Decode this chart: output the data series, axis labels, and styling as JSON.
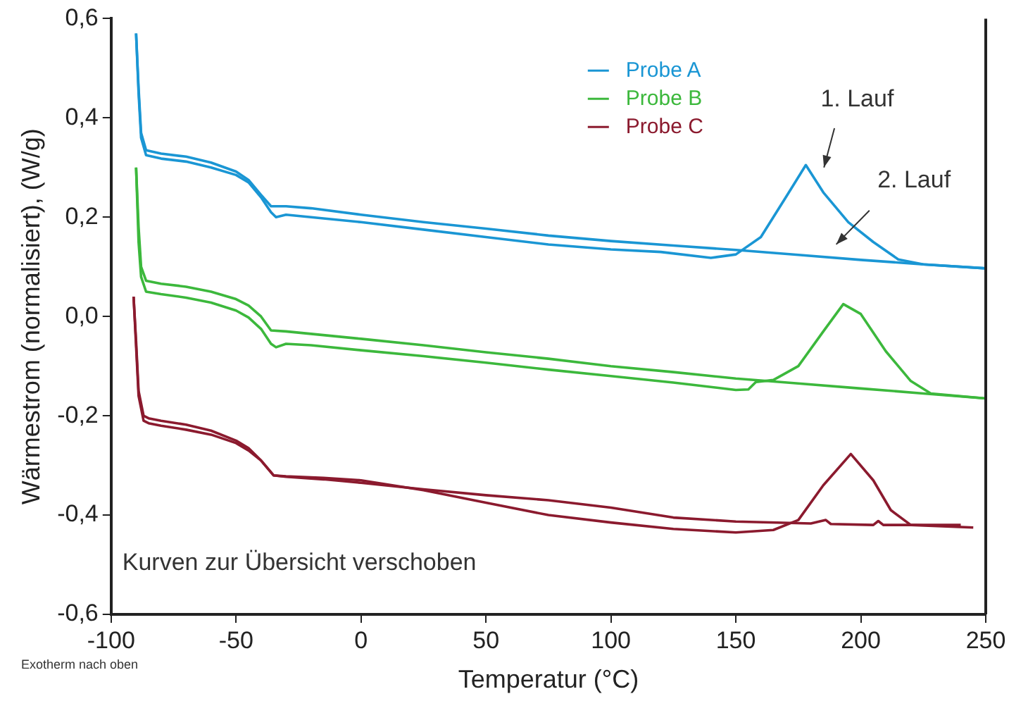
{
  "chart_data": {
    "type": "line",
    "xlabel": "Temperatur (°C)",
    "ylabel": "Wärmestrom (normalisiert), (W/g)",
    "xlim": [
      -100,
      250
    ],
    "xticks": [
      -100,
      -50,
      0,
      50,
      100,
      150,
      200,
      250
    ],
    "ylim": [
      -0.6,
      0.6
    ],
    "yticks": [
      {
        "value": -0.6,
        "label": "-0,6"
      },
      {
        "value": -0.4,
        "label": "-0,4"
      },
      {
        "value": -0.2,
        "label": "-0,2"
      },
      {
        "value": 0,
        "label": "0,0"
      },
      {
        "value": 0.2,
        "label": "0,2"
      },
      {
        "value": 0.4,
        "label": "0,4"
      },
      {
        "value": 0.6,
        "label": "0,6"
      }
    ],
    "grid": false,
    "legend": "top",
    "marker": "none",
    "line_style": "solid",
    "annotations": [
      "Kurven zur Übersicht verschoben",
      "Exotherm nach oben",
      "1. Lauf",
      "2. Lauf"
    ],
    "series": [
      {
        "name": "Probe A",
        "color": "#1a96d4",
        "x": [
          -90,
          -89,
          -88,
          -86,
          -80,
          -70,
          -60,
          -50,
          -45,
          -40,
          -36,
          -34,
          -30,
          -20,
          0,
          25,
          50,
          75,
          100,
          120,
          140,
          150,
          160,
          170,
          178,
          185,
          195,
          205,
          215,
          225,
          250
        ],
        "values": [
          0.57,
          0.45,
          0.36,
          0.325,
          0.318,
          0.312,
          0.3,
          0.285,
          0.27,
          0.24,
          0.21,
          0.2,
          0.205,
          0.2,
          0.19,
          0.175,
          0.16,
          0.145,
          0.135,
          0.13,
          0.118,
          0.125,
          0.16,
          0.24,
          0.305,
          0.25,
          0.19,
          0.15,
          0.115,
          0.105,
          0.097
        ]
      },
      {
        "color": "#1a96d4",
        "x": [
          -90,
          -89,
          -88,
          -86,
          -80,
          -70,
          -60,
          -50,
          -45,
          -40,
          -36,
          -30,
          -20,
          0,
          25,
          50,
          75,
          100,
          125,
          150,
          175,
          200,
          225,
          250
        ],
        "values": [
          0.57,
          0.46,
          0.37,
          0.335,
          0.328,
          0.322,
          0.31,
          0.292,
          0.275,
          0.245,
          0.222,
          0.222,
          0.218,
          0.205,
          0.19,
          0.177,
          0.163,
          0.152,
          0.143,
          0.134,
          0.124,
          0.114,
          0.105,
          0.097
        ]
      },
      {
        "name": "Probe B",
        "color": "#3cb83c",
        "x": [
          -90,
          -89,
          -88,
          -86,
          -80,
          -70,
          -60,
          -50,
          -45,
          -40,
          -36,
          -34,
          -30,
          -20,
          0,
          25,
          50,
          75,
          100,
          125,
          150,
          155,
          158,
          165,
          175,
          185,
          193,
          200,
          210,
          220,
          228,
          250
        ],
        "values": [
          0.3,
          0.15,
          0.08,
          0.05,
          0.045,
          0.038,
          0.028,
          0.012,
          -0.002,
          -0.025,
          -0.055,
          -0.062,
          -0.055,
          -0.058,
          -0.068,
          -0.08,
          -0.093,
          -0.107,
          -0.12,
          -0.133,
          -0.148,
          -0.147,
          -0.132,
          -0.128,
          -0.1,
          -0.03,
          0.025,
          0.005,
          -0.07,
          -0.13,
          -0.155,
          -0.165
        ]
      },
      {
        "color": "#3cb83c",
        "x": [
          -90,
          -89,
          -88,
          -86,
          -80,
          -70,
          -60,
          -50,
          -45,
          -40,
          -36,
          -30,
          -20,
          0,
          25,
          50,
          75,
          100,
          125,
          150,
          175,
          200,
          225,
          250
        ],
        "values": [
          0.3,
          0.18,
          0.1,
          0.072,
          0.066,
          0.06,
          0.05,
          0.035,
          0.022,
          0,
          -0.028,
          -0.03,
          -0.035,
          -0.045,
          -0.058,
          -0.072,
          -0.085,
          -0.1,
          -0.112,
          -0.125,
          -0.135,
          -0.145,
          -0.155,
          -0.165
        ]
      },
      {
        "name": "Probe C",
        "color": "#8b1a2e",
        "x": [
          -91,
          -90,
          -89,
          -87,
          -85,
          -80,
          -70,
          -60,
          -50,
          -45,
          -40,
          -35,
          -30,
          -15,
          0,
          25,
          50,
          75,
          100,
          125,
          150,
          165,
          175,
          185,
          196,
          205,
          212,
          220,
          245
        ],
        "values": [
          0.04,
          -0.05,
          -0.15,
          -0.2,
          -0.205,
          -0.21,
          -0.218,
          -0.23,
          -0.25,
          -0.265,
          -0.29,
          -0.32,
          -0.322,
          -0.325,
          -0.33,
          -0.35,
          -0.375,
          -0.4,
          -0.415,
          -0.428,
          -0.435,
          -0.43,
          -0.41,
          -0.34,
          -0.277,
          -0.33,
          -0.39,
          -0.42,
          -0.425
        ]
      },
      {
        "color": "#8b1a2e",
        "x": [
          -91,
          -90,
          -89,
          -87,
          -85,
          -80,
          -70,
          -60,
          -50,
          -45,
          -40,
          -35,
          -30,
          -15,
          0,
          25,
          50,
          75,
          100,
          125,
          150,
          180,
          186,
          188,
          205,
          207,
          209,
          240
        ],
        "values": [
          0.04,
          -0.06,
          -0.16,
          -0.21,
          -0.215,
          -0.22,
          -0.228,
          -0.238,
          -0.255,
          -0.27,
          -0.29,
          -0.32,
          -0.323,
          -0.328,
          -0.335,
          -0.348,
          -0.36,
          -0.37,
          -0.385,
          -0.405,
          -0.413,
          -0.417,
          -0.41,
          -0.418,
          -0.42,
          -0.412,
          -0.42,
          -0.42
        ]
      }
    ]
  }
}
